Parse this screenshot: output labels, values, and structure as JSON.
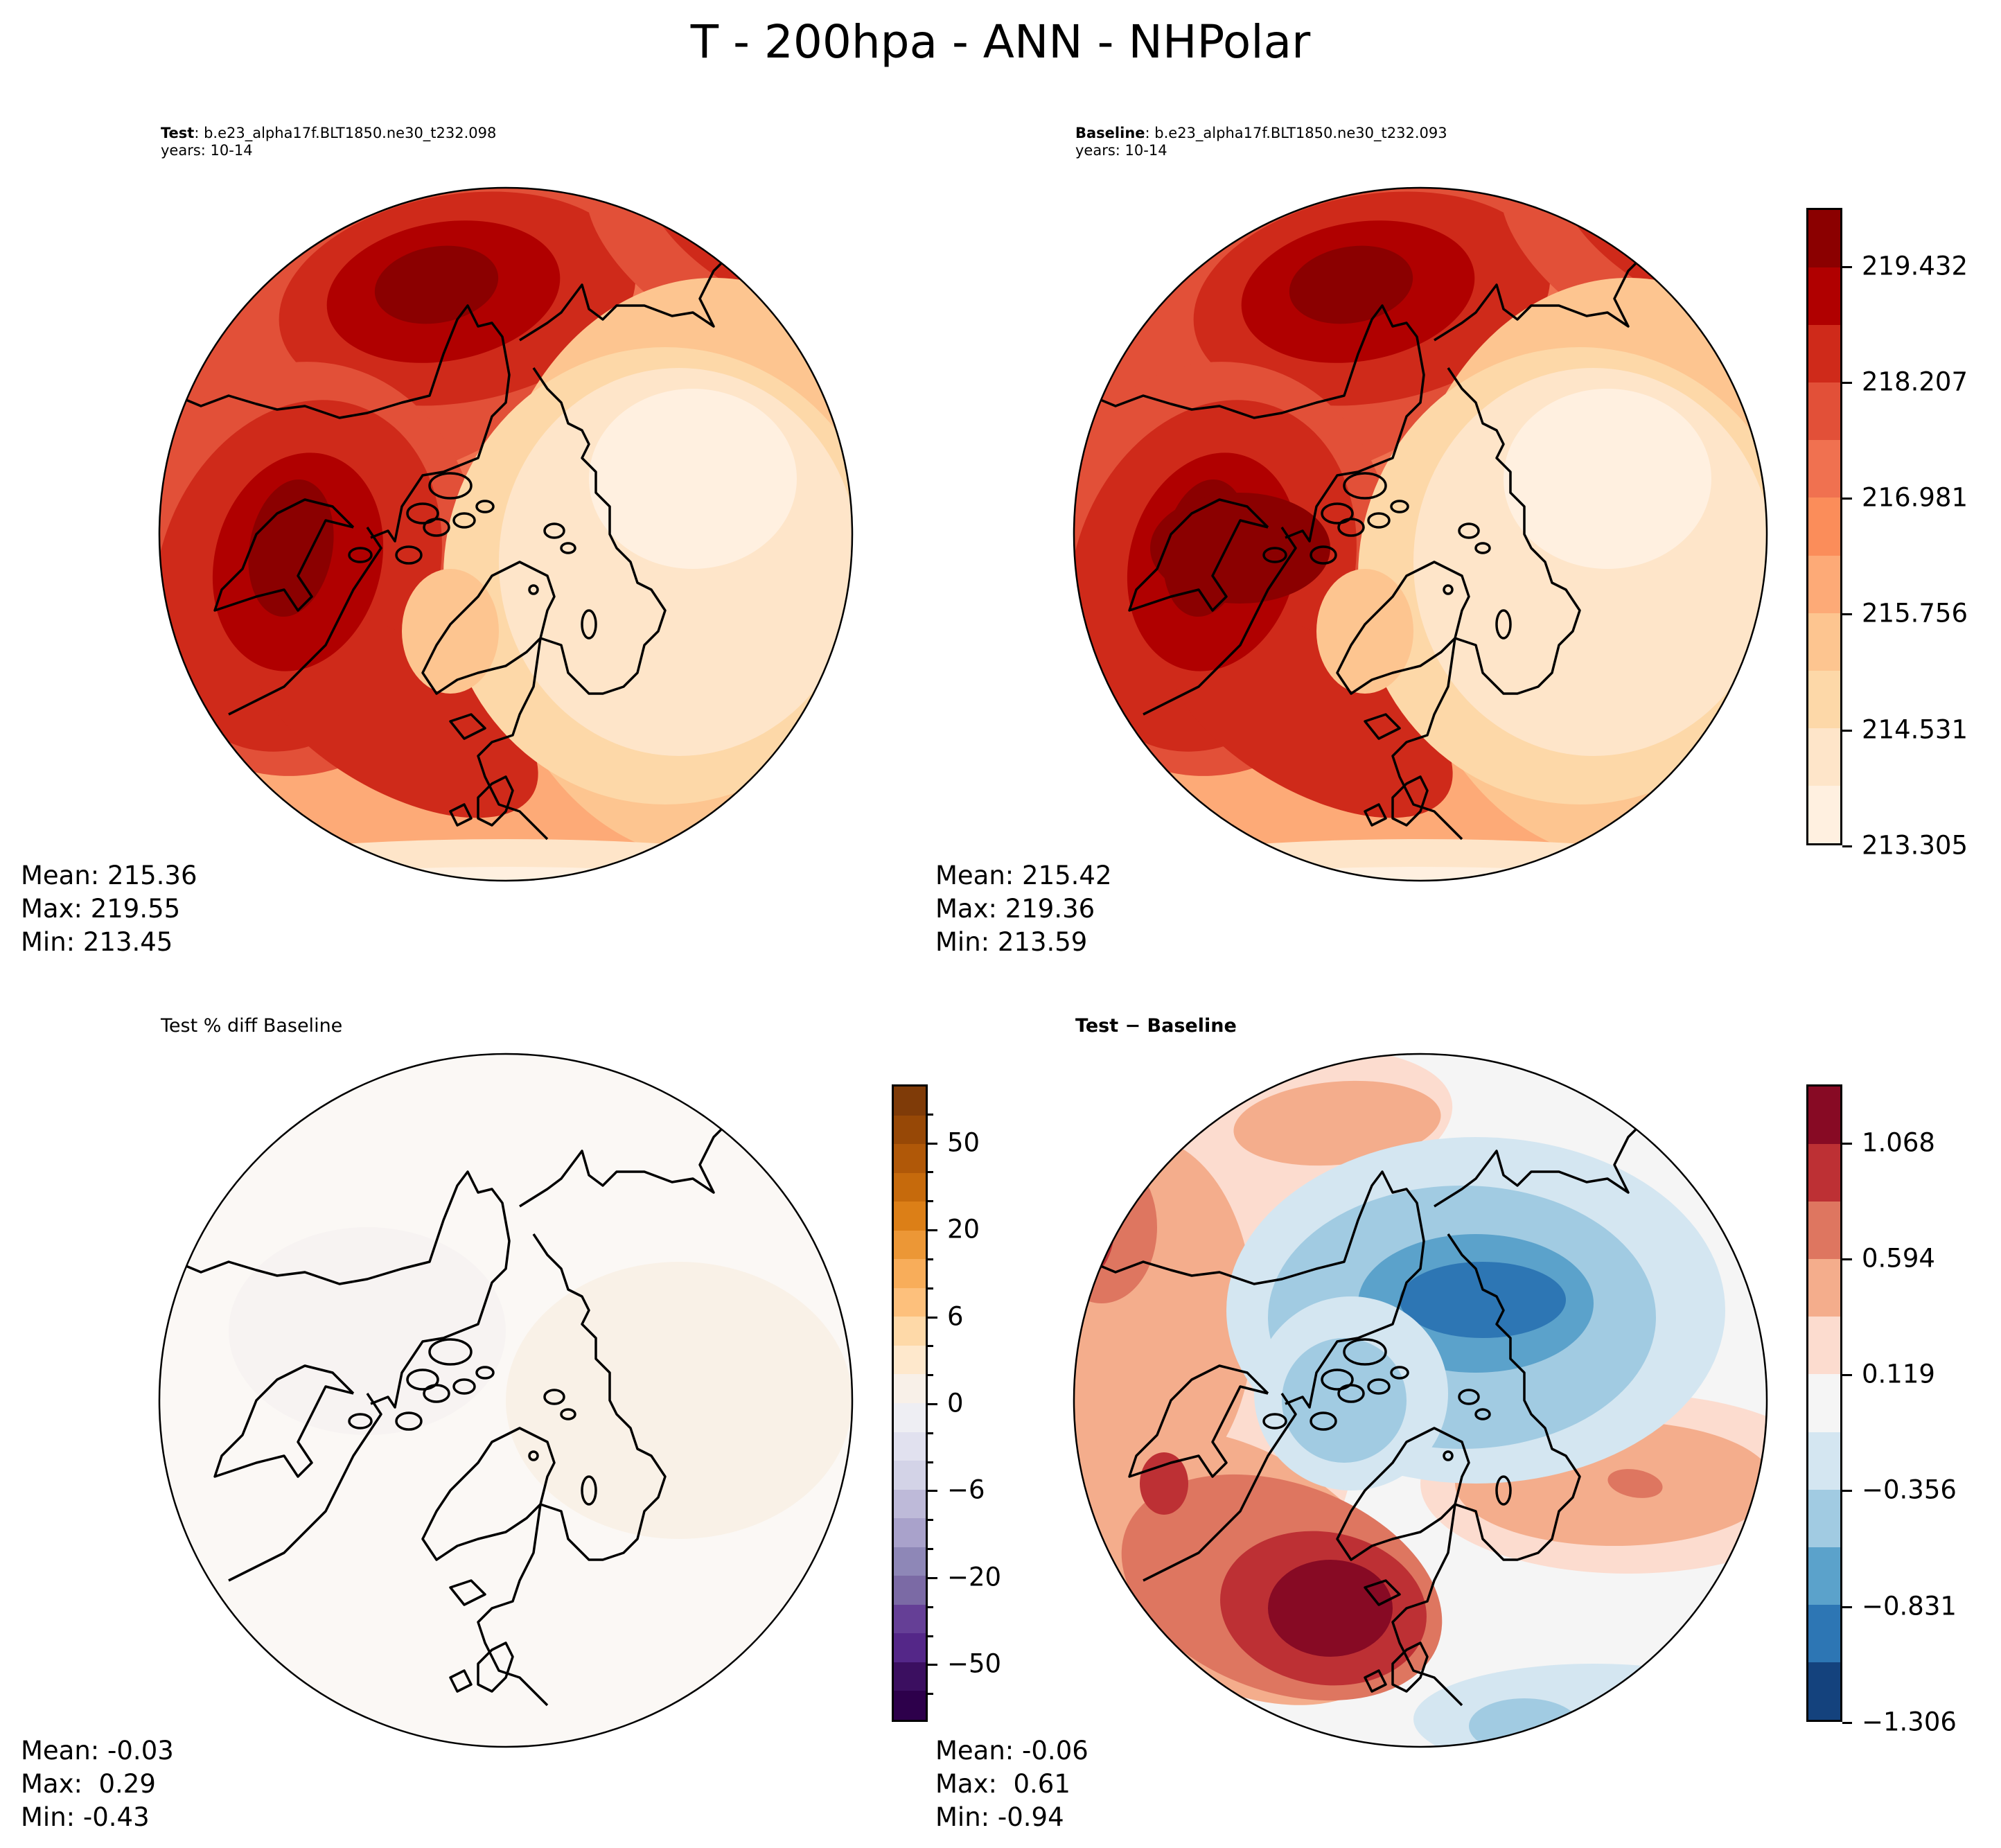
{
  "figure": {
    "title": "T - 200hpa - ANN - NHPolar"
  },
  "panels": {
    "test": {
      "label_bold": "Test",
      "label_rest": ": b.e23_alpha17f.BLT1850.ne30_t232.098",
      "years": "years: 10-14",
      "stats": {
        "mean": "Mean: 215.36",
        "max": "Max: 219.55",
        "min": "Min: 213.45"
      }
    },
    "baseline": {
      "label_bold": "Baseline",
      "label_rest": ": b.e23_alpha17f.BLT1850.ne30_t232.093",
      "years": "years: 10-14",
      "stats": {
        "mean": "Mean: 215.42",
        "max": "Max: 219.36",
        "min": "Min: 213.59"
      }
    },
    "pctdiff": {
      "title": "Test % diff Baseline",
      "stats": {
        "mean": "Mean: -0.03",
        "max": "Max:  0.29",
        "min": "Min: -0.43"
      }
    },
    "diff": {
      "title": "Test − Baseline",
      "stats": {
        "mean": "Mean: -0.06",
        "max": "Max:  0.61",
        "min": "Min: -0.94"
      }
    }
  },
  "chart_data": [
    {
      "type": "heatmap",
      "projection": "north-polar-stereographic",
      "title": "Test : b.e23_alpha17f.BLT1850.ne30_t232.098 (years: 10-14)",
      "variable": "T",
      "level": "200hpa",
      "season": "ANN",
      "region": "NHPolar",
      "stats": {
        "mean": 215.36,
        "max": 219.55,
        "min": 213.45
      },
      "colorbar": "shared-temperature"
    },
    {
      "type": "heatmap",
      "projection": "north-polar-stereographic",
      "title": "Baseline : b.e23_alpha17f.BLT1850.ne30_t232.093 (years: 10-14)",
      "stats": {
        "mean": 215.42,
        "max": 219.36,
        "min": 213.59
      },
      "colorbar": {
        "name": "shared-temperature",
        "range": [
          213.305,
          220.044
        ],
        "ticks": [
          "219.432",
          "218.207",
          "216.981",
          "215.756",
          "214.531",
          "213.305"
        ],
        "tick_values": [
          219.432,
          218.207,
          216.981,
          215.756,
          214.531,
          213.305
        ],
        "levels": 11,
        "colors": [
          "#fff0e0",
          "#fee5c9",
          "#fdd8a8",
          "#fdc590",
          "#fdaa77",
          "#fb8d5a",
          "#f07150",
          "#e25038",
          "#cf2a1a",
          "#b00000",
          "#8b0000"
        ]
      }
    },
    {
      "type": "heatmap",
      "projection": "north-polar-stereographic",
      "title": "Test % diff Baseline",
      "stats": {
        "mean": -0.03,
        "max": 0.29,
        "min": -0.43
      },
      "colorbar": {
        "ticks": [
          "50",
          "20",
          "6",
          "0",
          "−6",
          "−20",
          "−50"
        ],
        "tick_values": [
          50,
          20,
          6,
          0,
          -6,
          -20,
          -50
        ],
        "levels": 22,
        "colors": [
          "#2d004b",
          "#3b0f60",
          "#542788",
          "#653f96",
          "#7b6aa5",
          "#8e87b7",
          "#a9a2cb",
          "#bebad9",
          "#d3d3e7",
          "#e1e1ef",
          "#eeeef3",
          "#f8f0e8",
          "#fee8cc",
          "#fed9a8",
          "#fdc07c",
          "#f8ad5a",
          "#ec9736",
          "#dc7f17",
          "#c66a0c",
          "#b05808",
          "#974806",
          "#7f3b08"
        ]
      }
    },
    {
      "type": "heatmap",
      "projection": "north-polar-stereographic",
      "title": "Test − Baseline",
      "stats": {
        "mean": -0.06,
        "max": 0.61,
        "min": -0.94
      },
      "colorbar": {
        "range": [
          -1.306,
          1.306
        ],
        "ticks": [
          "1.068",
          "0.594",
          "0.119",
          "−0.356",
          "−0.831",
          "−1.306"
        ],
        "tick_values": [
          1.068,
          0.594,
          0.119,
          -0.356,
          -0.831,
          -1.306
        ],
        "levels": 11,
        "colors": [
          "#14427d",
          "#2d76b4",
          "#5ba2cb",
          "#a1cbe2",
          "#d4e6f1",
          "#f5f5f5",
          "#fcdccf",
          "#f4ad8c",
          "#de7660",
          "#bd3034",
          "#870a24"
        ]
      }
    }
  ]
}
